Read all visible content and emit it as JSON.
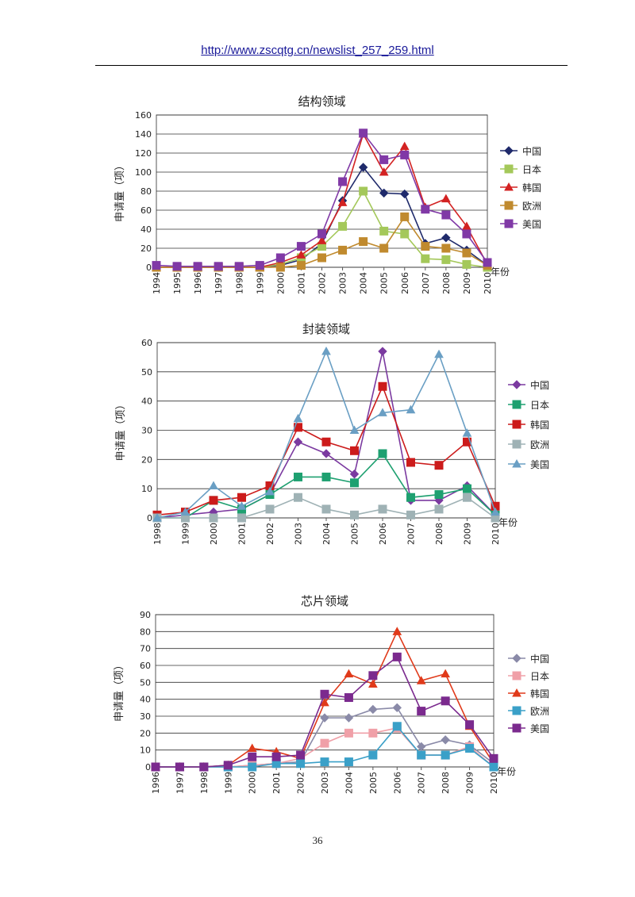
{
  "header": {
    "url": "http://www.zscqtg.cn/newslist_257_259.html"
  },
  "footer": {
    "page_number": "36"
  },
  "x_unit_label": "年份",
  "chart_data": [
    {
      "type": "line",
      "title": "结构领域",
      "ylabel": "申请量（项）",
      "ylim": [
        0,
        160
      ],
      "yticks": [
        0,
        20,
        40,
        60,
        80,
        100,
        120,
        140,
        160
      ],
      "ytick_labels": [
        "0",
        "20",
        "40",
        "60",
        "80",
        "100",
        "120",
        "140",
        "160"
      ],
      "categories": [
        "1994",
        "1995",
        "1996",
        "1997",
        "1998",
        "1999",
        "2000",
        "2001",
        "2002",
        "2003",
        "2004",
        "2005",
        "2006",
        "2007",
        "2008",
        "2009",
        "2010"
      ],
      "legend_position": "right",
      "series": [
        {
          "name": "中国",
          "color": "#1f2a6b",
          "marker": "diamond",
          "values": [
            0,
            0,
            0,
            0,
            0,
            0,
            2,
            8,
            25,
            70,
            105,
            78,
            77,
            25,
            31,
            18,
            2
          ]
        },
        {
          "name": "日本",
          "color": "#a4c85a",
          "marker": "square",
          "values": [
            0,
            0,
            0,
            0,
            0,
            0,
            3,
            10,
            22,
            43,
            80,
            38,
            35,
            9,
            8,
            3,
            0
          ]
        },
        {
          "name": "韩国",
          "color": "#d32222",
          "marker": "triangle",
          "values": [
            0,
            0,
            0,
            0,
            0,
            0,
            5,
            13,
            28,
            68,
            140,
            100,
            127,
            63,
            72,
            43,
            3
          ]
        },
        {
          "name": "欧洲",
          "color": "#c08a2e",
          "marker": "square",
          "values": [
            0,
            0,
            0,
            0,
            0,
            0,
            0,
            2,
            10,
            18,
            27,
            20,
            53,
            22,
            20,
            15,
            2
          ]
        },
        {
          "name": "美国",
          "color": "#8039a6",
          "marker": "square",
          "values": [
            2,
            1,
            1,
            1,
            1,
            2,
            10,
            22,
            35,
            90,
            141,
            113,
            118,
            61,
            55,
            35,
            5
          ]
        }
      ]
    },
    {
      "type": "line",
      "title": "封装领域",
      "ylabel": "申请量（项）",
      "ylim": [
        0,
        60
      ],
      "yticks": [
        0,
        10,
        20,
        30,
        40,
        50,
        60
      ],
      "ytick_labels": [
        "0",
        "10",
        "20",
        "30",
        "40",
        "50",
        "60"
      ],
      "categories": [
        "1998",
        "1999",
        "2000",
        "2001",
        "2002",
        "2003",
        "2004",
        "2005",
        "2006",
        "2007",
        "2008",
        "2009",
        "2010"
      ],
      "legend_position": "right",
      "series": [
        {
          "name": "中国",
          "color": "#7b3aa0",
          "marker": "diamond",
          "values": [
            0,
            1,
            2,
            3,
            8,
            26,
            22,
            15,
            57,
            6,
            6,
            11,
            1
          ]
        },
        {
          "name": "日本",
          "color": "#1ea070",
          "marker": "square",
          "values": [
            0,
            0,
            6,
            3,
            8,
            14,
            14,
            12,
            22,
            7,
            8,
            10,
            1
          ]
        },
        {
          "name": "韩国",
          "color": "#cc1b1b",
          "marker": "square",
          "values": [
            1,
            2,
            6,
            7,
            11,
            31,
            26,
            23,
            45,
            19,
            18,
            26,
            4
          ]
        },
        {
          "name": "欧洲",
          "color": "#9fb2b5",
          "marker": "square",
          "values": [
            0,
            0,
            0,
            0,
            3,
            7,
            3,
            1,
            3,
            1,
            3,
            7,
            0
          ]
        },
        {
          "name": "美国",
          "color": "#6a9fc4",
          "marker": "triangle",
          "values": [
            0,
            2,
            11,
            4,
            9,
            34,
            57,
            30,
            36,
            37,
            56,
            29,
            2
          ]
        }
      ]
    },
    {
      "type": "line",
      "title": "芯片领域",
      "ylabel": "申请量（项）",
      "ylim": [
        0,
        90
      ],
      "yticks": [
        0,
        10,
        20,
        30,
        40,
        50,
        60,
        70,
        80,
        90
      ],
      "ytick_labels": [
        "0",
        "10",
        "20",
        "30",
        "40",
        "50",
        "60",
        "70",
        "80",
        "90"
      ],
      "categories": [
        "1996",
        "1997",
        "1998",
        "1999",
        "2000",
        "2001",
        "2002",
        "2003",
        "2004",
        "2005",
        "2006",
        "2007",
        "2008",
        "2009",
        "2010"
      ],
      "legend_position": "right",
      "series": [
        {
          "name": "中国",
          "color": "#8a8aa8",
          "marker": "diamond",
          "values": [
            0,
            0,
            0,
            0,
            1,
            2,
            3,
            29,
            29,
            34,
            35,
            12,
            16,
            13,
            2
          ]
        },
        {
          "name": "日本",
          "color": "#f0a0a8",
          "marker": "square",
          "values": [
            0,
            0,
            0,
            0,
            1,
            2,
            5,
            14,
            20,
            20,
            23,
            7,
            7,
            12,
            0
          ]
        },
        {
          "name": "韩国",
          "color": "#e03a1a",
          "marker": "triangle",
          "values": [
            0,
            0,
            0,
            1,
            11,
            9,
            5,
            38,
            55,
            49,
            80,
            51,
            55,
            24,
            2
          ]
        },
        {
          "name": "欧洲",
          "color": "#3aa0c8",
          "marker": "square",
          "values": [
            0,
            0,
            0,
            0,
            0,
            2,
            2,
            3,
            3,
            7,
            24,
            7,
            7,
            11,
            0
          ]
        },
        {
          "name": "美国",
          "color": "#7b2a8e",
          "marker": "square",
          "values": [
            0,
            0,
            0,
            1,
            6,
            6,
            7,
            43,
            41,
            54,
            65,
            33,
            39,
            25,
            5
          ]
        }
      ]
    }
  ]
}
